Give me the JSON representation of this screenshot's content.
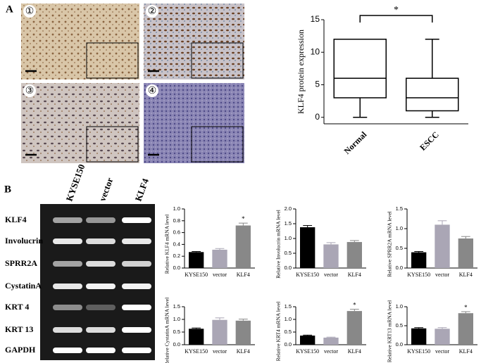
{
  "panel_a": {
    "label": "A",
    "images": [
      "①",
      "②",
      "③",
      "④"
    ]
  },
  "panel_b": {
    "label": "B",
    "lanes": [
      "KYSE150",
      "vector",
      "KLF4"
    ],
    "genes": [
      "KLF4",
      "Involucrin",
      "SPRR2A",
      "CystatinA",
      "KRT 4",
      "KRT 13",
      "GAPDH"
    ]
  },
  "chart_data": [
    {
      "type": "box",
      "ylabel": "KLF4 protein expression",
      "categories": [
        "Normal",
        "ESCC"
      ],
      "min": [
        0,
        0
      ],
      "q1": [
        3,
        1
      ],
      "median": [
        6,
        3
      ],
      "q3": [
        12,
        6
      ],
      "max": [
        12,
        12
      ],
      "ylim": [
        -1,
        15
      ],
      "yticks": [
        0,
        5,
        10,
        15
      ],
      "annotation": "*"
    },
    {
      "type": "bar",
      "ylabel": "Relative KLF4 mRNA level",
      "categories": [
        "KYSE150",
        "vector",
        "KLF4"
      ],
      "values": [
        0.27,
        0.31,
        0.72
      ],
      "errors": [
        0.01,
        0.02,
        0.04
      ],
      "colors": [
        "#000000",
        "#aaa6b5",
        "#888888"
      ],
      "ylim": [
        0,
        1.0
      ],
      "yticks": [
        {
          "value": 0,
          "label": "0.0"
        },
        {
          "value": 0.2,
          "label": "0.2"
        },
        {
          "value": 0.4,
          "label": "0.4"
        },
        {
          "value": 0.6,
          "label": "0.6"
        },
        {
          "value": 0.8,
          "label": "0.8"
        },
        {
          "value": 1.0,
          "label": "1.0"
        }
      ],
      "annotations": [
        null,
        null,
        "*"
      ]
    },
    {
      "type": "bar",
      "ylabel": "Relative Involucrin mRNA level",
      "categories": [
        "KYSE150",
        "vector",
        "KLF4"
      ],
      "values": [
        1.38,
        0.8,
        0.88
      ],
      "errors": [
        0.06,
        0.06,
        0.05
      ],
      "colors": [
        "#000000",
        "#aaa6b5",
        "#888888"
      ],
      "ylim": [
        0,
        2.0
      ],
      "yticks": [
        {
          "value": 0,
          "label": "0.0"
        },
        {
          "value": 0.5,
          "label": "0.5"
        },
        {
          "value": 1.0,
          "label": "1.0"
        },
        {
          "value": 1.5,
          "label": "1.5"
        },
        {
          "value": 2.0,
          "label": "2.0"
        }
      ]
    },
    {
      "type": "bar",
      "ylabel": "Relative SPRR2A mRNA level",
      "categories": [
        "KYSE150",
        "vector",
        "KLF4"
      ],
      "values": [
        0.4,
        1.1,
        0.75
      ],
      "errors": [
        0.02,
        0.1,
        0.05
      ],
      "colors": [
        "#000000",
        "#aaa6b5",
        "#888888"
      ],
      "ylim": [
        0,
        1.5
      ],
      "yticks": [
        {
          "value": 0,
          "label": "0.0"
        },
        {
          "value": 0.5,
          "label": "0.5"
        },
        {
          "value": 1.0,
          "label": "1.0"
        },
        {
          "value": 1.5,
          "label": "1.5"
        }
      ]
    },
    {
      "type": "bar",
      "ylabel": "Relative CystatinA mRNA level",
      "categories": [
        "KYSE150",
        "vector",
        "KLF4"
      ],
      "values": [
        0.63,
        0.98,
        0.95
      ],
      "errors": [
        0.03,
        0.08,
        0.06
      ],
      "colors": [
        "#000000",
        "#aaa6b5",
        "#888888"
      ],
      "ylim": [
        0,
        1.5
      ],
      "yticks": [
        {
          "value": 0,
          "label": "0.0"
        },
        {
          "value": 0.5,
          "label": "0.5"
        },
        {
          "value": 1.0,
          "label": "1.0"
        },
        {
          "value": 1.5,
          "label": "1.5"
        }
      ]
    },
    {
      "type": "bar",
      "ylabel": "Relative KRT4 mRNA level",
      "categories": [
        "KYSE150",
        "vector",
        "KLF4"
      ],
      "values": [
        0.36,
        0.28,
        1.33
      ],
      "errors": [
        0.02,
        0.02,
        0.07
      ],
      "colors": [
        "#000000",
        "#aaa6b5",
        "#888888"
      ],
      "ylim": [
        0,
        1.5
      ],
      "yticks": [
        {
          "value": 0,
          "label": "0.0"
        },
        {
          "value": 0.5,
          "label": "0.5"
        },
        {
          "value": 1.0,
          "label": "1.0"
        },
        {
          "value": 1.5,
          "label": "1.5"
        }
      ],
      "annotations": [
        null,
        null,
        "*"
      ]
    },
    {
      "type": "bar",
      "ylabel": "Relative KRT13 mRNA level",
      "categories": [
        "KYSE150",
        "vector",
        "KLF4"
      ],
      "values": [
        0.43,
        0.42,
        0.83
      ],
      "errors": [
        0.02,
        0.03,
        0.04
      ],
      "colors": [
        "#000000",
        "#aaa6b5",
        "#888888"
      ],
      "ylim": [
        0,
        1.0
      ],
      "yticks": [
        {
          "value": 0,
          "label": "0.0"
        },
        {
          "value": 0.5,
          "label": "0.5"
        },
        {
          "value": 1.0,
          "label": "1.0"
        }
      ],
      "annotations": [
        null,
        null,
        "*"
      ]
    }
  ]
}
